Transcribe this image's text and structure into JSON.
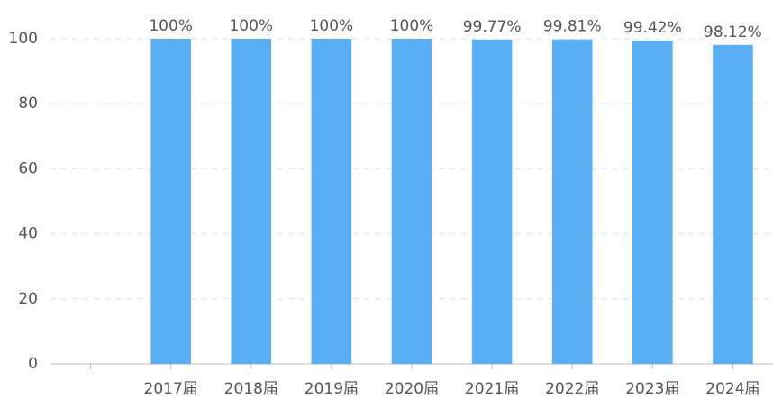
{
  "chart_data": {
    "type": "bar",
    "categories": [
      null,
      "2017届",
      "2018届",
      "2019届",
      "2020届",
      "2021届",
      "2022届",
      "2023届",
      "2024届"
    ],
    "values": [
      null,
      100,
      100,
      100,
      100,
      99.77,
      99.81,
      99.42,
      98.12
    ],
    "value_labels": [
      null,
      "100%",
      "100%",
      "100%",
      "100%",
      "99.77%",
      "99.81%",
      "99.42%",
      "98.12%"
    ],
    "color": "#5aaef3",
    "ylim": [
      0,
      100
    ],
    "yticks": [
      0,
      20,
      40,
      60,
      80,
      100
    ],
    "grid": true
  }
}
